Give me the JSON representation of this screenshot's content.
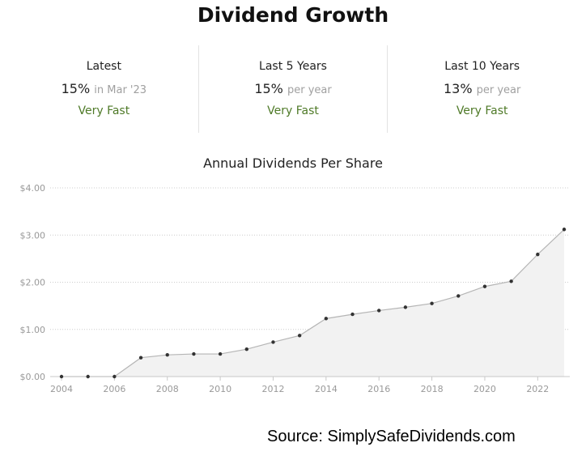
{
  "header": {
    "title": "Dividend Growth"
  },
  "stats": [
    {
      "label": "Latest",
      "value": "15%",
      "sub": "in Mar '23",
      "rating": "Very Fast"
    },
    {
      "label": "Last 5 Years",
      "value": "15%",
      "sub": "per year",
      "rating": "Very Fast"
    },
    {
      "label": "Last 10 Years",
      "value": "13%",
      "sub": "per year",
      "rating": "Very Fast"
    }
  ],
  "colors": {
    "rating": "#4f7a28",
    "line": "#b5b5b5",
    "area": "#f2f2f2",
    "point": "#333333",
    "grid": "#cccccc"
  },
  "chart_data": {
    "type": "area",
    "title": "Annual Dividends Per Share",
    "xlabel": "",
    "ylabel": "",
    "x": [
      2004,
      2005,
      2006,
      2007,
      2008,
      2009,
      2010,
      2011,
      2012,
      2013,
      2014,
      2015,
      2016,
      2017,
      2018,
      2019,
      2020,
      2021,
      2022,
      2023
    ],
    "values": [
      0.0,
      0.0,
      0.0,
      0.4,
      0.46,
      0.48,
      0.48,
      0.58,
      0.73,
      0.87,
      1.23,
      1.32,
      1.4,
      1.47,
      1.55,
      1.71,
      1.91,
      2.02,
      2.59,
      3.12
    ],
    "xticks": [
      "2004",
      "2006",
      "2008",
      "2010",
      "2012",
      "2014",
      "2016",
      "2018",
      "2020",
      "2022"
    ],
    "yticks": [
      "$0.00",
      "$1.00",
      "$2.00",
      "$3.00",
      "$4.00"
    ],
    "xlim": [
      2004,
      2023
    ],
    "ylim": [
      0,
      4
    ],
    "grid": true,
    "legend": "none"
  },
  "footer": {
    "source": "Source: SimplySafeDividends.com"
  }
}
